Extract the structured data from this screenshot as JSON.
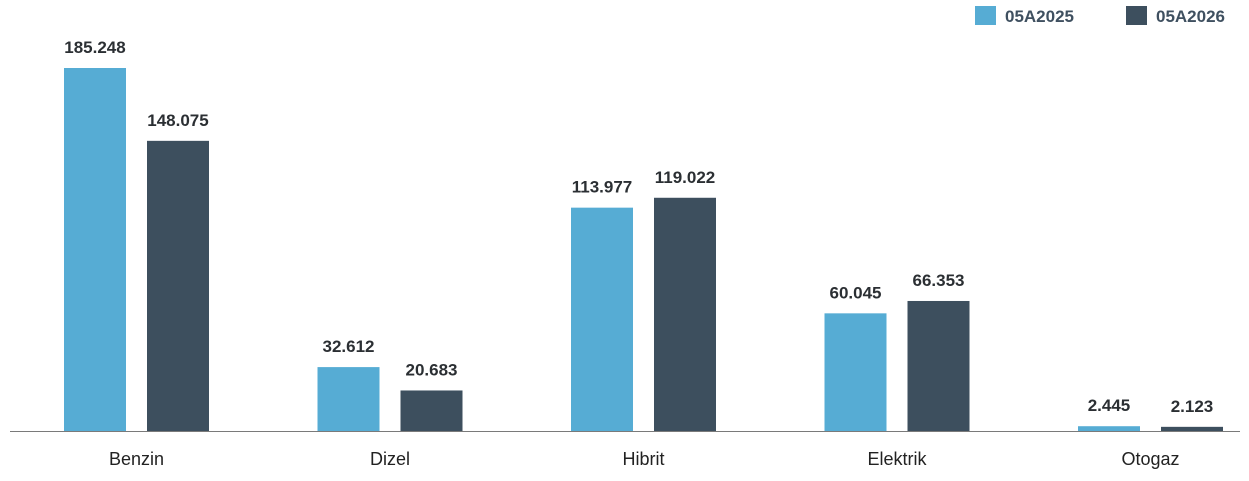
{
  "chart_data": {
    "type": "bar",
    "categories": [
      "Benzin",
      "Dizel",
      "Hibrit",
      "Elektrik",
      "Otogaz"
    ],
    "series": [
      {
        "name": "05A2025",
        "color": "#56acd4",
        "values": [
          185248,
          32612,
          113977,
          60045,
          2445
        ],
        "labels": [
          "185.248",
          "32.612",
          "113.977",
          "60.045",
          "2.445"
        ]
      },
      {
        "name": "05A2026",
        "color": "#3d4f5e",
        "values": [
          148075,
          20683,
          119022,
          66353,
          2123
        ],
        "labels": [
          "148.075",
          "20.683",
          "119.022",
          "66.353",
          "2.123"
        ]
      }
    ],
    "ylim": [
      0,
      185248
    ],
    "grid": false,
    "legend_position": "top-right",
    "axis_color": "#7a7a7a"
  }
}
